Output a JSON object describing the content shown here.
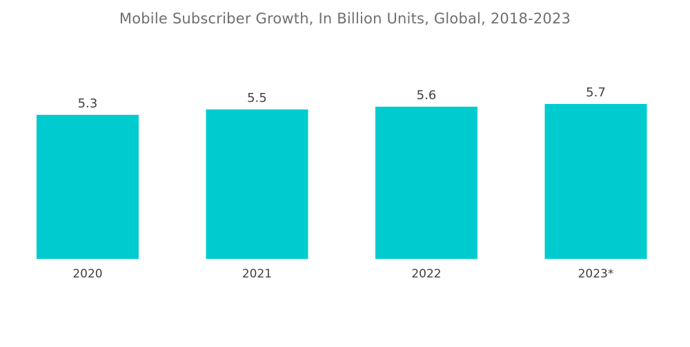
{
  "chart_data": {
    "type": "bar",
    "title": "Mobile Subscriber Growth, In Billion Units, Global, 2018-2023",
    "categories": [
      "2020",
      "2021",
      "2022",
      "2023*"
    ],
    "values": [
      5.3,
      5.5,
      5.6,
      5.7
    ],
    "value_labels": [
      "5.3",
      "5.5",
      "5.6",
      "5.7"
    ],
    "xlabel": "",
    "ylabel": "",
    "ylim": [
      0,
      5.7
    ],
    "grid": false,
    "legend": "none",
    "bar_color": "#00cccf"
  }
}
